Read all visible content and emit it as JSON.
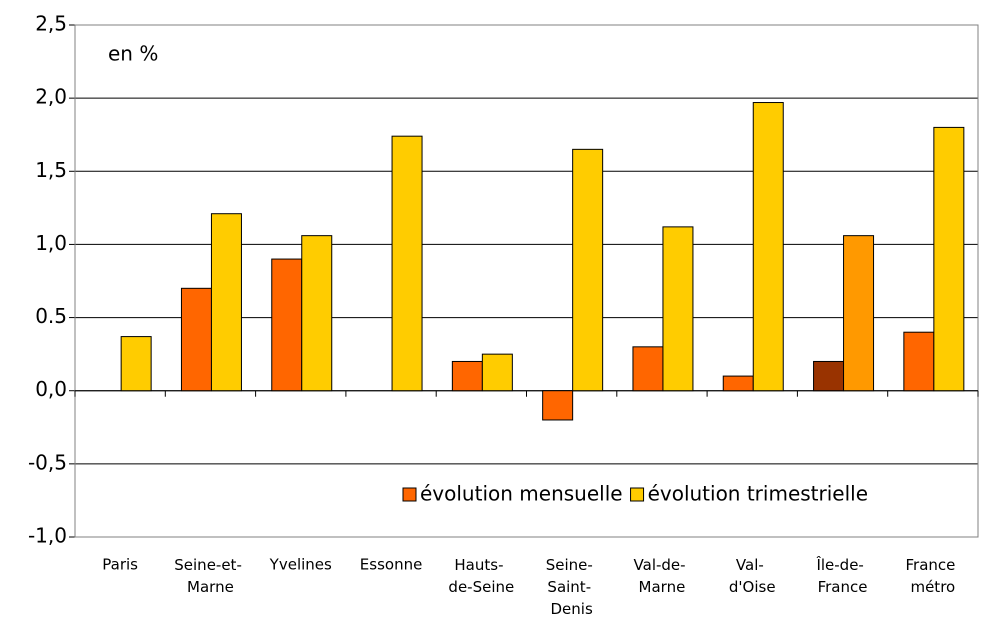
{
  "chart_data": {
    "type": "bar",
    "annotation": "en %",
    "categories": [
      "Paris",
      "Seine-et-\nMarne",
      "Yvelines",
      "Essonne",
      "Hauts-\nde-Seine",
      "Seine-\nSaint-\nDenis",
      "Val-de-\nMarne",
      "Val-\nd'Oise",
      "Île-de-\nFrance",
      "France\nmétro"
    ],
    "series": [
      {
        "name": "évolution mensuelle",
        "color": "#ff6600",
        "colors": [
          "#ff6600",
          "#ff6600",
          "#ff6600",
          "#ff6600",
          "#ff6600",
          "#ff6600",
          "#ff6600",
          "#ff6600",
          "#993300",
          "#ff6600"
        ],
        "values": [
          0,
          0.7,
          0.9,
          0,
          0.2,
          -0.2,
          0.3,
          0.1,
          0.2,
          0.4
        ]
      },
      {
        "name": "évolution trimestrielle",
        "color": "#ffcc00",
        "colors": [
          "#ffcc00",
          "#ffcc00",
          "#ffcc00",
          "#ffcc00",
          "#ffcc00",
          "#ffcc00",
          "#ffcc00",
          "#ffcc00",
          "#ff9900",
          "#ffcc00"
        ],
        "values": [
          0.37,
          1.21,
          1.06,
          1.74,
          0.25,
          1.65,
          1.12,
          1.97,
          1.06,
          1.8
        ]
      }
    ],
    "ylim": [
      -1,
      2.5
    ],
    "yticks": [
      {
        "value": -1,
        "label": "-1,0"
      },
      {
        "value": -0.5,
        "label": "-0,5"
      },
      {
        "value": 0,
        "label": "0,0"
      },
      0.5,
      {
        "value": 1,
        "label": "1,0"
      },
      {
        "value": 1.5,
        "label": "1,5"
      },
      {
        "value": 2,
        "label": "2,0"
      },
      {
        "value": 2.5,
        "label": "2,5"
      }
    ],
    "grid": true,
    "legend": "lower right"
  }
}
